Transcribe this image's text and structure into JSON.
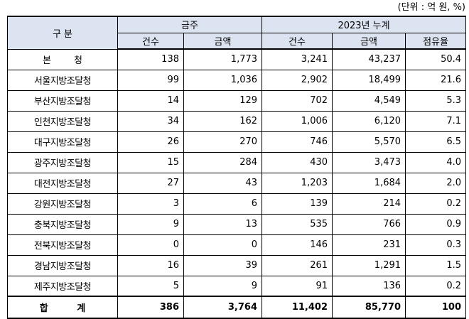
{
  "unit_label": "(단위 : 억 원, %)",
  "header": {
    "category": "구 분",
    "group_week": "금주",
    "group_cumulative": "2023년 누계",
    "col_count": "건수",
    "col_amount": "금액",
    "col_share": "점유율"
  },
  "rows": [
    {
      "name": "본 청",
      "week_count": "138",
      "week_amount": "1,773",
      "cum_count": "3,241",
      "cum_amount": "43,237",
      "share": "50.4"
    },
    {
      "name": "서울지방조달청",
      "week_count": "99",
      "week_amount": "1,036",
      "cum_count": "2,902",
      "cum_amount": "18,499",
      "share": "21.6"
    },
    {
      "name": "부산지방조달청",
      "week_count": "14",
      "week_amount": "129",
      "cum_count": "702",
      "cum_amount": "4,549",
      "share": "5.3"
    },
    {
      "name": "인천지방조달청",
      "week_count": "34",
      "week_amount": "162",
      "cum_count": "1,006",
      "cum_amount": "6,120",
      "share": "7.1"
    },
    {
      "name": "대구지방조달청",
      "week_count": "26",
      "week_amount": "270",
      "cum_count": "746",
      "cum_amount": "5,570",
      "share": "6.5"
    },
    {
      "name": "광주지방조달청",
      "week_count": "15",
      "week_amount": "284",
      "cum_count": "430",
      "cum_amount": "3,473",
      "share": "4.0"
    },
    {
      "name": "대전지방조달청",
      "week_count": "27",
      "week_amount": "43",
      "cum_count": "1,203",
      "cum_amount": "1,684",
      "share": "2.0"
    },
    {
      "name": "강원지방조달청",
      "week_count": "3",
      "week_amount": "6",
      "cum_count": "139",
      "cum_amount": "214",
      "share": "0.2"
    },
    {
      "name": "충북지방조달청",
      "week_count": "9",
      "week_amount": "13",
      "cum_count": "535",
      "cum_amount": "766",
      "share": "0.9"
    },
    {
      "name": "전북지방조달청",
      "week_count": "0",
      "week_amount": "0",
      "cum_count": "146",
      "cum_amount": "231",
      "share": "0.3"
    },
    {
      "name": "경남지방조달청",
      "week_count": "16",
      "week_amount": "39",
      "cum_count": "261",
      "cum_amount": "1,291",
      "share": "1.5"
    },
    {
      "name": "제주지방조달청",
      "week_count": "5",
      "week_amount": "9",
      "cum_count": "91",
      "cum_amount": "136",
      "share": "0.2"
    }
  ],
  "total": {
    "name": "합 계",
    "week_count": "386",
    "week_amount": "3,764",
    "cum_count": "11,402",
    "cum_amount": "85,770",
    "share": "100"
  },
  "colors": {
    "header_bg": "#dbe4f0",
    "border": "#000000"
  }
}
